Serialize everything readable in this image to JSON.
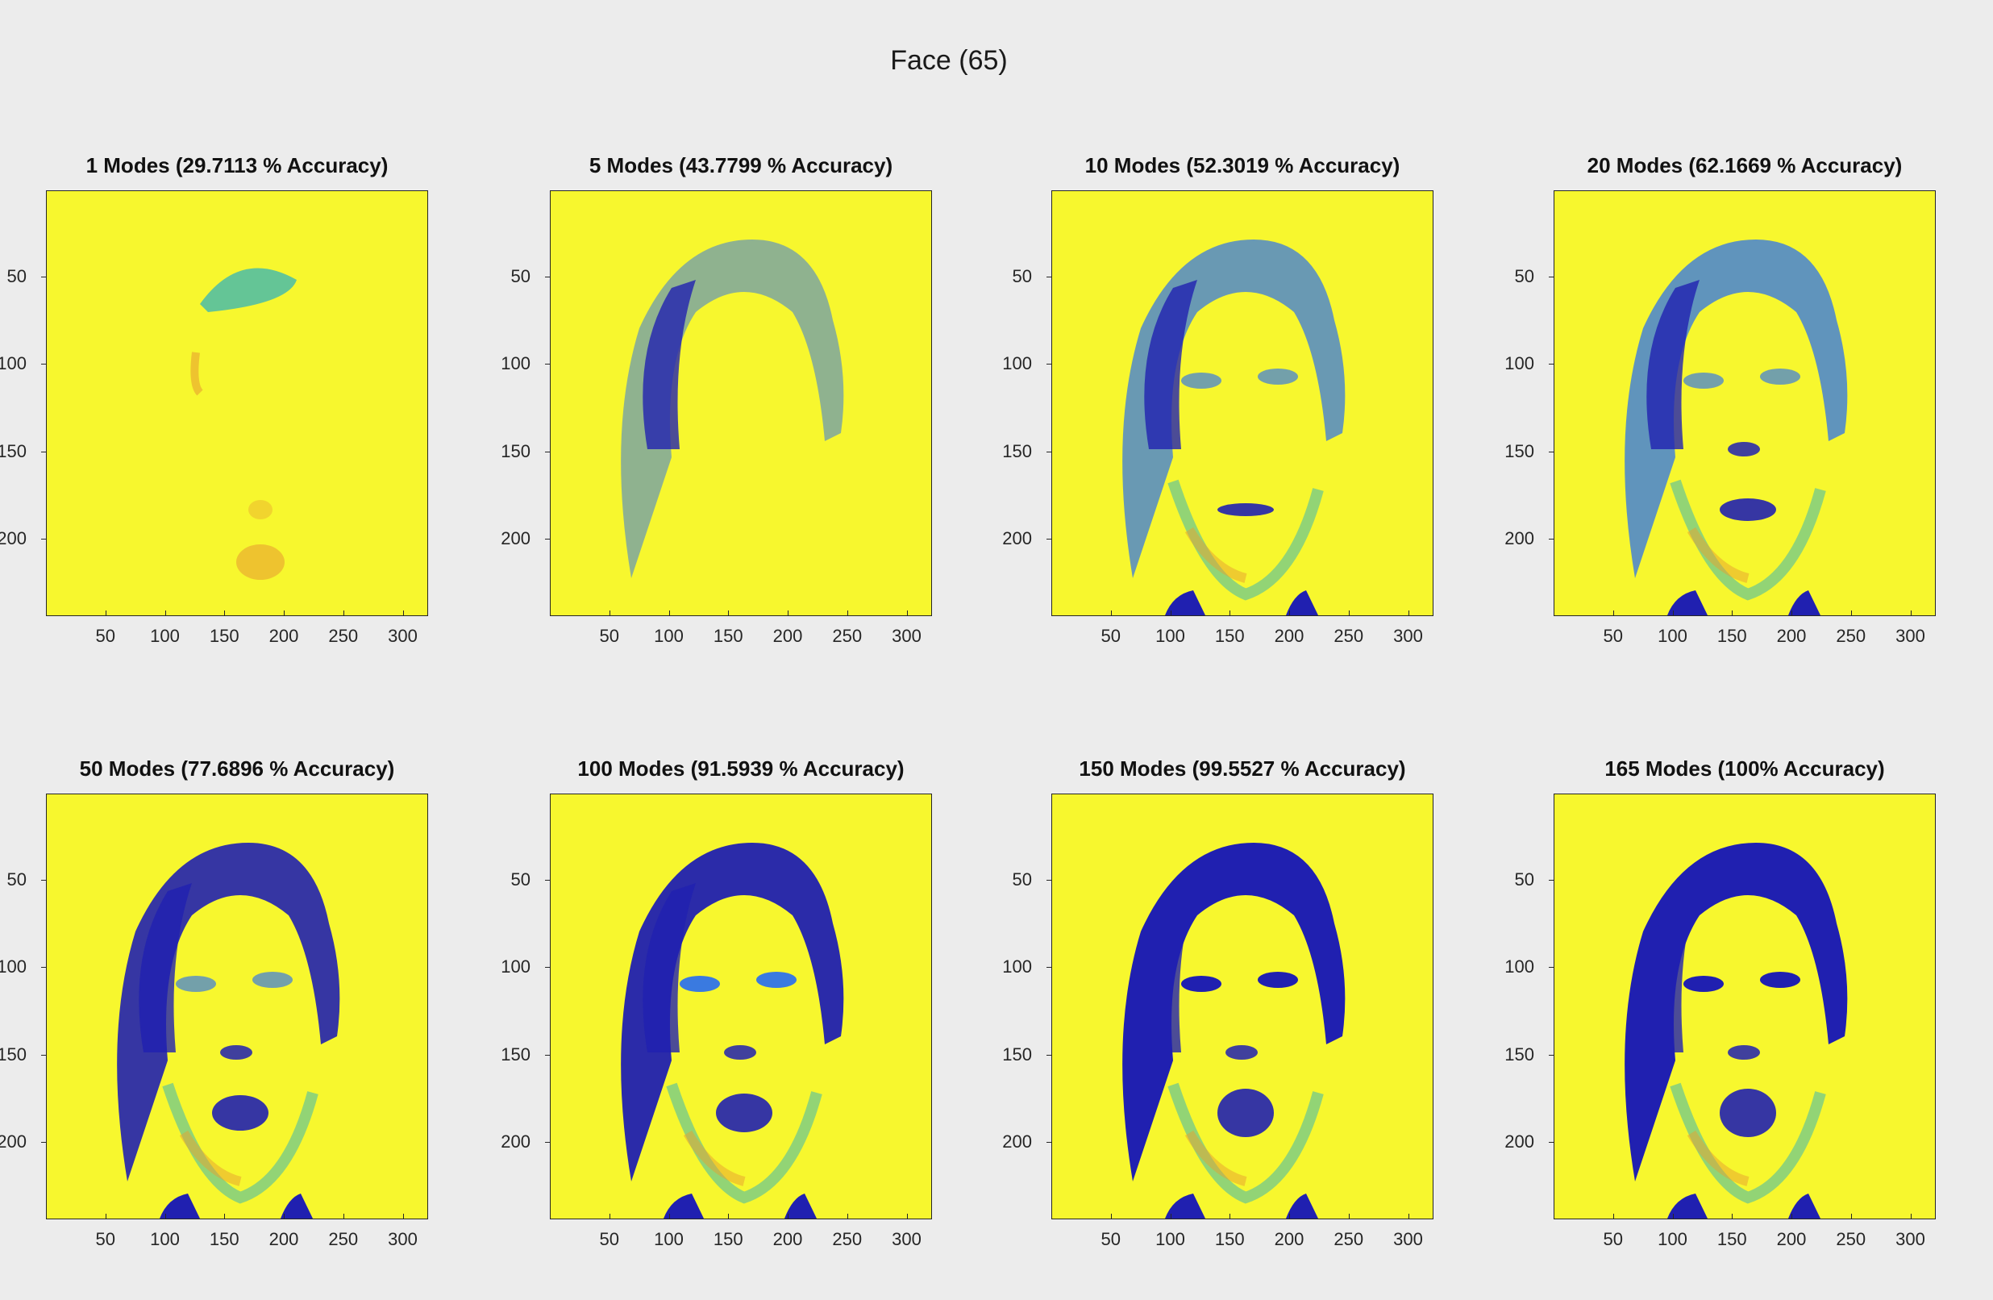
{
  "figure": {
    "title": "Face (65)",
    "colors": {
      "background": "#ececec",
      "image_fill": "#f7f72e",
      "dark": "#2020b0",
      "mid": "#3a7ae0",
      "teal": "#3fb8b0",
      "orange": "#e8a030"
    },
    "y_ticks": [
      "50",
      "100",
      "150",
      "200"
    ],
    "x_ticks": [
      "50",
      "100",
      "150",
      "200",
      "250",
      "300"
    ],
    "subplots": [
      {
        "title": "1 Modes (29.7113 % Accuracy)",
        "modes": 1,
        "accuracy_percent": 29.7113
      },
      {
        "title": "5 Modes (43.7799 % Accuracy)",
        "modes": 5,
        "accuracy_percent": 43.7799
      },
      {
        "title": "10 Modes (52.3019 % Accuracy)",
        "modes": 10,
        "accuracy_percent": 52.3019
      },
      {
        "title": "20 Modes (62.1669 % Accuracy)",
        "modes": 20,
        "accuracy_percent": 62.1669
      },
      {
        "title": "50 Modes (77.6896 % Accuracy)",
        "modes": 50,
        "accuracy_percent": 77.6896
      },
      {
        "title": "100 Modes (91.5939 % Accuracy)",
        "modes": 100,
        "accuracy_percent": 91.5939
      },
      {
        "title": "150 Modes (99.5527 % Accuracy)",
        "modes": 150,
        "accuracy_percent": 99.5527
      },
      {
        "title": "165 Modes (100% Accuracy)",
        "modes": 165,
        "accuracy_percent": 100
      }
    ]
  }
}
